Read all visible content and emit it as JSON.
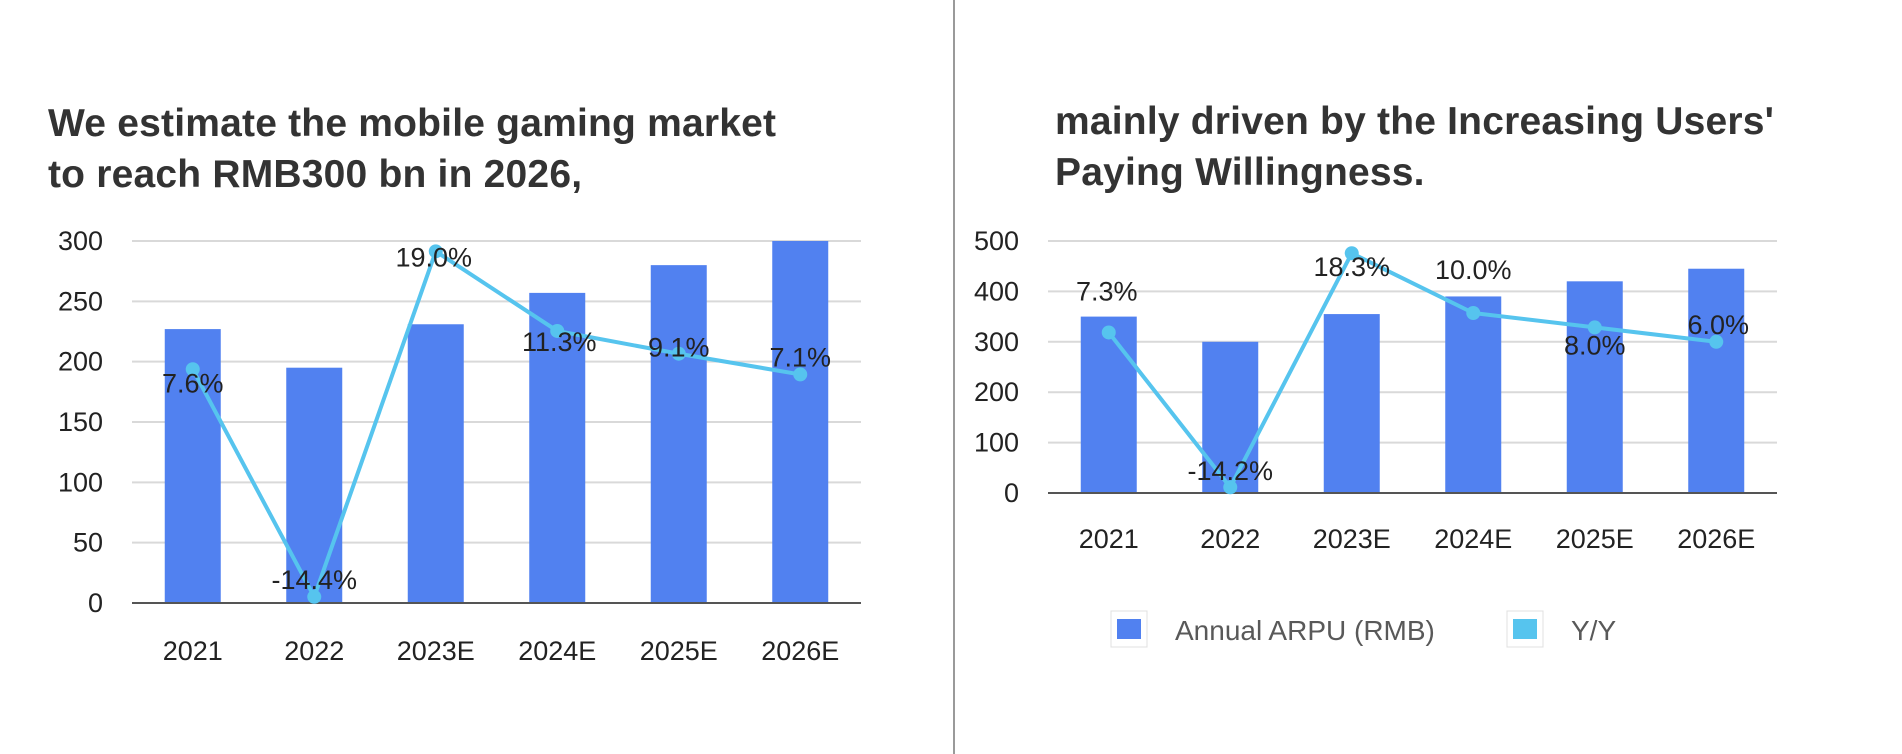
{
  "left": {
    "title_line1": "We estimate the mobile gaming market",
    "title_line2": "to reach RMB300 bn in 2026,"
  },
  "right": {
    "title_line1": "mainly driven by the Increasing Users'",
    "title_line2": "Paying Willingness."
  },
  "colors": {
    "bar": "#5181f0",
    "line": "#56c4ee",
    "grid": "#d9d9d9",
    "axis": "#555555"
  },
  "chart_data": [
    {
      "type": "bar",
      "categories": [
        "2021",
        "2022",
        "2023E",
        "2024E",
        "2025E",
        "2026E"
      ],
      "series": [
        {
          "type": "bar",
          "values": [
            227,
            195,
            231,
            257,
            280,
            300
          ]
        },
        {
          "type": "line",
          "values": [
            7.6,
            -14.4,
            19.0,
            11.3,
            9.1,
            7.1
          ],
          "labels": [
            "7.6%",
            "-14.4%",
            "19.0%",
            "11.3%",
            "9.1%",
            "7.1%"
          ]
        }
      ],
      "yticks": [
        "0",
        "50",
        "100",
        "150",
        "200",
        "250",
        "300"
      ],
      "ylim": [
        0,
        300
      ],
      "y2lim": [
        -15,
        20
      ],
      "grid": true
    },
    {
      "type": "bar",
      "categories": [
        "2021",
        "2022",
        "2023E",
        "2024E",
        "2025E",
        "2026E"
      ],
      "series": [
        {
          "name": "Annual ARPU (RMB)",
          "type": "bar",
          "values": [
            350,
            300,
            355,
            390,
            420,
            445
          ]
        },
        {
          "name": "Y/Y",
          "type": "line",
          "values": [
            7.3,
            -14.2,
            18.3,
            10.0,
            8.0,
            6.0
          ],
          "labels": [
            "7.3%",
            "-14.2%",
            "18.3%",
            "10.0%",
            "8.0%",
            "6.0%"
          ]
        }
      ],
      "yticks": [
        "0",
        "100",
        "200",
        "300",
        "400",
        "500"
      ],
      "ylim": [
        0,
        500
      ],
      "y2lim": [
        -15,
        20
      ],
      "grid": true,
      "legend": "bottom"
    }
  ]
}
